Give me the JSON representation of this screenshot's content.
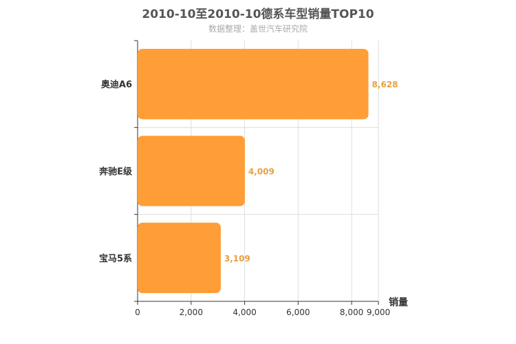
{
  "chart_data": {
    "type": "bar",
    "orientation": "horizontal",
    "title": "2010-10至2010-10德系车型销量TOP10",
    "subtitle": "数据整理：盖世汽车研究院",
    "categories": [
      "奥迪A6",
      "奔驰E级",
      "宝马5系"
    ],
    "values": [
      8628,
      4009,
      3109
    ],
    "value_labels": [
      "8,628",
      "4,009",
      "3,109"
    ],
    "xlabel": "销量",
    "ylabel": "",
    "xlim": [
      0,
      9000
    ],
    "x_ticks": [
      0,
      2000,
      4000,
      6000,
      8000,
      9000
    ],
    "x_tick_labels": [
      "0",
      "2,000",
      "4,000",
      "6,000",
      "8,000",
      "9,000"
    ],
    "grid": true,
    "colors": {
      "bar": "#ff9e36",
      "label": "#e8a040"
    }
  }
}
